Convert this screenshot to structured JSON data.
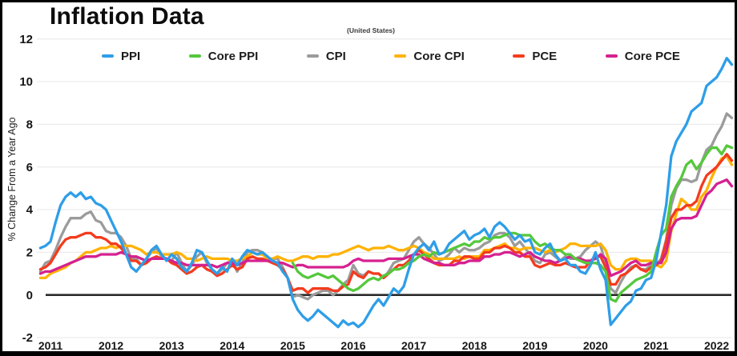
{
  "header": {
    "title": "Inflation Data",
    "subtitle": "(United States)"
  },
  "legend": {
    "items": [
      {
        "label": "PPI",
        "color": "#2E9EE8"
      },
      {
        "label": "Core PPI",
        "color": "#55C83C"
      },
      {
        "label": "CPI",
        "color": "#9B9B9B"
      },
      {
        "label": "Core CPI",
        "color": "#FFB200"
      },
      {
        "label": "PCE",
        "color": "#F43B1E"
      },
      {
        "label": "Core PCE",
        "color": "#D52190"
      }
    ]
  },
  "chart_data": {
    "type": "line",
    "title": "Inflation Data",
    "region_note": "(United States)",
    "ylabel": "% Change From a Year Ago",
    "xlabel": "",
    "grid": "horizontal",
    "legend_position": "top",
    "zero_line": true,
    "ylim": [
      -2,
      12
    ],
    "x_ticks": [
      2011,
      2012,
      2013,
      2014,
      2015,
      2016,
      2017,
      2018,
      2019,
      2020,
      2021,
      2022
    ],
    "y_ticks": [
      12,
      10,
      8,
      6,
      4,
      2,
      0,
      -2
    ],
    "x_start_year": 2010.8333,
    "x_step_years": 0.0833333,
    "draw_order": [
      "CPI",
      "Core CPI",
      "PCE",
      "Core PCE",
      "Core PPI",
      "PPI"
    ],
    "series": [
      {
        "name": "PPI",
        "color": "#2E9EE8",
        "values": [
          2.2,
          2.3,
          2.5,
          3.4,
          4.2,
          4.6,
          4.8,
          4.6,
          4.8,
          4.5,
          4.6,
          4.3,
          4.2,
          4.0,
          3.5,
          3.0,
          2.5,
          1.9,
          1.3,
          1.1,
          1.4,
          1.7,
          2.1,
          2.3,
          1.9,
          1.6,
          1.9,
          1.7,
          1.3,
          1.1,
          1.5,
          2.1,
          2.0,
          1.6,
          1.2,
          1.0,
          1.3,
          1.1,
          1.7,
          1.4,
          1.8,
          2.1,
          2.0,
          1.9,
          2.0,
          1.8,
          1.6,
          1.5,
          1.1,
          0.8,
          -0.2,
          -0.7,
          -1.0,
          -1.2,
          -1.0,
          -0.7,
          -0.9,
          -1.1,
          -1.3,
          -1.5,
          -1.2,
          -1.4,
          -1.3,
          -1.5,
          -1.3,
          -0.9,
          -0.5,
          -0.2,
          -0.5,
          -0.1,
          0.3,
          0.1,
          0.4,
          1.2,
          1.9,
          2.2,
          2.4,
          2.1,
          2.5,
          1.9,
          2.0,
          2.4,
          2.6,
          2.8,
          3.0,
          2.6,
          2.8,
          2.9,
          3.1,
          2.7,
          3.2,
          3.4,
          3.2,
          2.9,
          2.6,
          2.8,
          2.5,
          2.6,
          2.0,
          1.9,
          2.2,
          2.4,
          1.9,
          1.6,
          1.7,
          1.4,
          1.4,
          1.1,
          1.0,
          1.4,
          2.0,
          1.2,
          0.7,
          -1.4,
          -1.1,
          -0.8,
          -0.5,
          -0.3,
          0.2,
          0.3,
          0.7,
          0.8,
          1.6,
          2.9,
          4.2,
          6.5,
          7.2,
          7.6,
          8.0,
          8.6,
          8.8,
          9.0,
          9.8,
          10.0,
          10.2,
          10.6,
          11.1,
          10.8
        ]
      },
      {
        "name": "Core PPI",
        "color": "#55C83C",
        "values": [
          null,
          null,
          null,
          null,
          null,
          null,
          null,
          null,
          null,
          null,
          null,
          null,
          null,
          null,
          null,
          null,
          null,
          null,
          null,
          null,
          null,
          null,
          null,
          null,
          null,
          null,
          null,
          null,
          null,
          null,
          null,
          null,
          null,
          null,
          null,
          null,
          null,
          null,
          null,
          null,
          null,
          null,
          null,
          null,
          null,
          null,
          null,
          null,
          null,
          null,
          1.5,
          1.1,
          0.9,
          0.8,
          0.9,
          1.0,
          0.9,
          0.8,
          0.9,
          0.7,
          0.5,
          0.3,
          0.2,
          0.3,
          0.5,
          0.7,
          0.8,
          0.7,
          0.9,
          1.0,
          1.2,
          1.2,
          1.3,
          1.5,
          1.6,
          1.8,
          1.9,
          1.8,
          2.0,
          1.9,
          2.0,
          2.1,
          2.2,
          2.3,
          2.4,
          2.3,
          2.5,
          2.5,
          2.7,
          2.6,
          2.7,
          2.7,
          2.8,
          2.9,
          2.9,
          2.8,
          2.8,
          2.8,
          2.5,
          2.3,
          2.4,
          2.2,
          2.1,
          2.1,
          1.9,
          1.9,
          1.7,
          1.6,
          1.5,
          1.5,
          1.5,
          1.4,
          1.1,
          -0.2,
          -0.3,
          0.1,
          0.3,
          0.5,
          0.7,
          0.8,
          0.9,
          1.1,
          2.0,
          2.8,
          3.1,
          4.6,
          5.1,
          5.5,
          6.1,
          6.3,
          5.9,
          6.2,
          6.6,
          6.9,
          6.9,
          6.6,
          7.0,
          6.9
        ]
      },
      {
        "name": "CPI",
        "color": "#9B9B9B",
        "values": [
          1.1,
          1.5,
          1.6,
          2.1,
          2.7,
          3.2,
          3.6,
          3.6,
          3.6,
          3.8,
          3.9,
          3.5,
          3.4,
          3.0,
          2.9,
          2.9,
          2.7,
          2.3,
          1.7,
          1.7,
          1.4,
          1.7,
          2.0,
          2.2,
          1.8,
          1.7,
          1.6,
          2.0,
          1.5,
          1.1,
          1.4,
          1.8,
          2.0,
          1.5,
          1.2,
          1.0,
          1.2,
          1.5,
          1.6,
          1.1,
          1.5,
          2.0,
          2.1,
          2.1,
          2.0,
          1.7,
          1.7,
          1.7,
          1.3,
          0.8,
          -0.1,
          0.0,
          -0.1,
          -0.2,
          0.0,
          0.1,
          0.2,
          0.2,
          0.0,
          0.2,
          0.5,
          0.7,
          1.4,
          1.0,
          0.9,
          1.1,
          1.0,
          1.0,
          0.8,
          1.1,
          1.5,
          1.6,
          1.7,
          2.1,
          2.5,
          2.7,
          2.4,
          2.2,
          1.9,
          1.6,
          1.7,
          1.9,
          2.2,
          2.0,
          2.2,
          2.1,
          2.1,
          2.2,
          2.4,
          2.5,
          2.8,
          2.9,
          2.9,
          2.7,
          2.3,
          2.5,
          2.2,
          1.9,
          1.6,
          1.5,
          1.9,
          2.0,
          1.8,
          1.6,
          1.8,
          1.7,
          1.7,
          1.8,
          2.1,
          2.3,
          2.5,
          2.3,
          1.5,
          0.3,
          0.1,
          0.6,
          1.0,
          1.3,
          1.4,
          1.2,
          1.2,
          1.4,
          1.4,
          1.7,
          2.6,
          4.2,
          5.0,
          5.4,
          5.4,
          5.3,
          5.4,
          6.2,
          6.8,
          7.0,
          7.5,
          7.9,
          8.5,
          8.3
        ]
      },
      {
        "name": "Core CPI",
        "color": "#FFB200",
        "values": [
          0.8,
          0.8,
          1.0,
          1.1,
          1.2,
          1.3,
          1.5,
          1.6,
          1.8,
          2.0,
          2.0,
          2.1,
          2.2,
          2.2,
          2.3,
          2.2,
          2.3,
          2.3,
          2.3,
          2.2,
          2.1,
          1.9,
          2.0,
          2.0,
          1.9,
          1.9,
          1.9,
          2.0,
          1.9,
          1.7,
          1.7,
          1.6,
          1.7,
          1.8,
          1.7,
          1.7,
          1.7,
          1.7,
          1.6,
          1.6,
          1.7,
          1.8,
          2.0,
          1.9,
          1.9,
          1.7,
          1.7,
          1.8,
          1.7,
          1.6,
          1.6,
          1.7,
          1.8,
          1.8,
          1.7,
          1.8,
          1.8,
          1.8,
          1.9,
          1.9,
          2.0,
          2.1,
          2.2,
          2.3,
          2.2,
          2.1,
          2.2,
          2.2,
          2.2,
          2.3,
          2.2,
          2.1,
          2.1,
          2.2,
          2.3,
          2.2,
          2.0,
          1.9,
          1.7,
          1.7,
          1.7,
          1.7,
          1.7,
          1.8,
          1.7,
          1.8,
          1.8,
          1.8,
          2.1,
          2.1,
          2.2,
          2.3,
          2.4,
          2.2,
          2.2,
          2.1,
          2.2,
          2.2,
          2.2,
          2.1,
          2.0,
          2.1,
          2.0,
          2.1,
          2.2,
          2.4,
          2.4,
          2.3,
          2.3,
          2.3,
          2.3,
          2.4,
          2.1,
          1.4,
          1.2,
          1.2,
          1.6,
          1.7,
          1.7,
          1.6,
          1.6,
          1.6,
          1.4,
          1.3,
          1.6,
          3.0,
          3.8,
          4.5,
          4.3,
          4.0,
          4.0,
          4.6,
          4.9,
          5.5,
          6.0,
          6.4,
          6.5,
          6.1
        ]
      },
      {
        "name": "PCE",
        "color": "#F43B1E",
        "values": [
          1.2,
          1.3,
          1.5,
          1.9,
          2.3,
          2.6,
          2.7,
          2.7,
          2.8,
          2.9,
          2.9,
          2.7,
          2.7,
          2.6,
          2.4,
          2.4,
          2.2,
          1.9,
          1.6,
          1.6,
          1.4,
          1.5,
          1.7,
          1.8,
          1.7,
          1.7,
          1.5,
          1.4,
          1.2,
          1.0,
          1.1,
          1.3,
          1.4,
          1.2,
          1.1,
          0.9,
          1.0,
          1.2,
          1.4,
          1.2,
          1.3,
          1.7,
          1.8,
          1.7,
          1.7,
          1.6,
          1.5,
          1.4,
          1.2,
          0.8,
          0.2,
          0.3,
          0.3,
          0.1,
          0.3,
          0.3,
          0.3,
          0.3,
          0.2,
          0.2,
          0.4,
          0.5,
          1.1,
          0.9,
          0.8,
          1.1,
          1.0,
          1.0,
          0.8,
          1.0,
          1.2,
          1.4,
          1.4,
          1.6,
          1.9,
          2.1,
          1.9,
          1.7,
          1.5,
          1.4,
          1.4,
          1.4,
          1.6,
          1.6,
          1.8,
          1.8,
          1.7,
          1.7,
          2.0,
          2.0,
          2.2,
          2.2,
          2.3,
          2.2,
          2.0,
          2.0,
          1.8,
          1.8,
          1.4,
          1.3,
          1.4,
          1.5,
          1.4,
          1.4,
          1.5,
          1.4,
          1.3,
          1.3,
          1.3,
          1.6,
          1.8,
          1.8,
          1.3,
          0.5,
          0.5,
          0.9,
          1.0,
          1.2,
          1.4,
          1.2,
          1.1,
          1.3,
          1.4,
          1.6,
          2.5,
          3.6,
          4.0,
          4.0,
          4.2,
          4.2,
          4.4,
          5.1,
          5.6,
          5.8,
          6.0,
          6.3,
          6.6,
          6.3
        ]
      },
      {
        "name": "Core PCE",
        "color": "#D52190",
        "values": [
          1.0,
          1.1,
          1.1,
          1.2,
          1.3,
          1.4,
          1.5,
          1.6,
          1.7,
          1.8,
          1.8,
          1.8,
          1.9,
          1.9,
          1.9,
          1.9,
          2.0,
          1.9,
          1.8,
          1.8,
          1.7,
          1.6,
          1.7,
          1.7,
          1.7,
          1.7,
          1.6,
          1.5,
          1.5,
          1.4,
          1.4,
          1.4,
          1.4,
          1.4,
          1.4,
          1.3,
          1.4,
          1.5,
          1.5,
          1.4,
          1.5,
          1.6,
          1.6,
          1.6,
          1.6,
          1.6,
          1.6,
          1.5,
          1.5,
          1.4,
          1.3,
          1.4,
          1.4,
          1.3,
          1.3,
          1.3,
          1.3,
          1.3,
          1.3,
          1.3,
          1.3,
          1.4,
          1.6,
          1.7,
          1.6,
          1.6,
          1.6,
          1.6,
          1.6,
          1.7,
          1.7,
          1.7,
          1.7,
          1.8,
          1.9,
          1.9,
          1.7,
          1.6,
          1.5,
          1.5,
          1.4,
          1.4,
          1.4,
          1.5,
          1.5,
          1.6,
          1.6,
          1.6,
          1.8,
          1.8,
          1.9,
          1.9,
          2.0,
          2.0,
          1.9,
          1.8,
          1.9,
          2.0,
          1.8,
          1.7,
          1.6,
          1.6,
          1.5,
          1.6,
          1.7,
          1.8,
          1.7,
          1.7,
          1.6,
          1.6,
          1.7,
          1.9,
          1.7,
          0.9,
          1.0,
          1.1,
          1.3,
          1.5,
          1.6,
          1.4,
          1.4,
          1.5,
          1.5,
          1.5,
          2.0,
          3.1,
          3.5,
          3.6,
          3.6,
          3.6,
          3.7,
          4.2,
          4.7,
          4.9,
          5.2,
          5.3,
          5.4,
          5.1
        ]
      }
    ]
  },
  "style": {
    "grid_color": "#ececec",
    "zero_line_color": "#2a2a2a",
    "frame_border_color": "#000000",
    "tick_label_color": "#161616"
  }
}
